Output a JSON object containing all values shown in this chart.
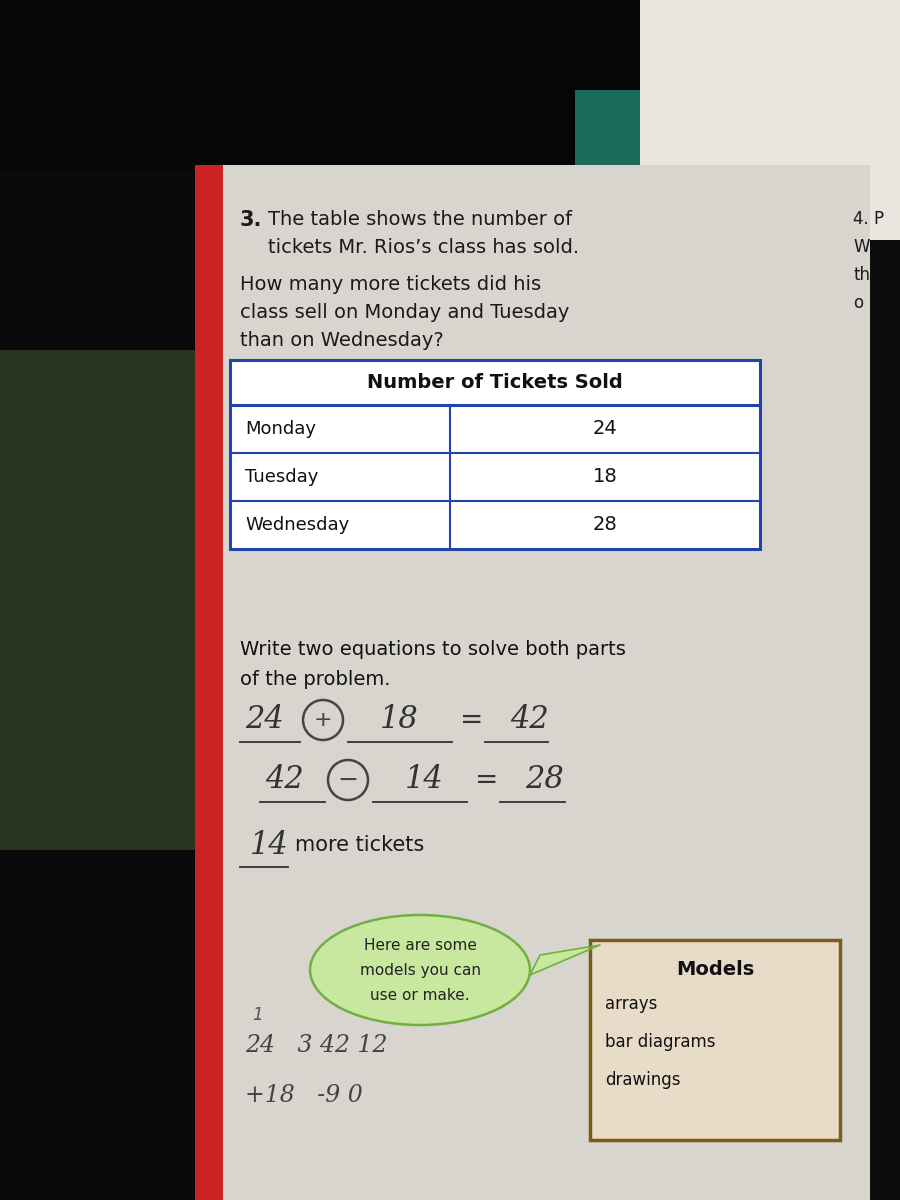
{
  "bg_color": "#0d0d0d",
  "left_bg_color": "#111111",
  "carpet_color": "#3a4a2a",
  "page_color": "#d8d5ce",
  "red_bar_color": "#cc2222",
  "question_number": "3.",
  "question_text_line1": "The table shows the number of",
  "question_text_line2": "tickets Mr. Rios’s class has sold.",
  "question_subtext_line1": "How many more tickets did his",
  "question_subtext_line2": "class sell on Monday and Tuesday",
  "question_subtext_line3": "than on Wednesday?",
  "table_title": "Number of Tickets Sold",
  "table_rows": [
    [
      "Monday",
      "24"
    ],
    [
      "Tuesday",
      "18"
    ],
    [
      "Wednesday",
      "28"
    ]
  ],
  "write_prompt_line1": "Write two equations to solve both parts",
  "write_prompt_line2": "of the problem.",
  "eq1": [
    "24",
    "+",
    "18",
    "=",
    "42"
  ],
  "eq2": [
    "42",
    "-",
    "14",
    "=",
    "28"
  ],
  "answer_blank": "14",
  "answer_suffix": "more tickets",
  "bubble_line1": "Here are some",
  "bubble_line2": "models you can",
  "bubble_line3": "use or make.",
  "models_title": "Models",
  "models_items": [
    "arrays",
    "bar diagrams",
    "drawings"
  ],
  "q4_lines": [
    "4. P",
    "W",
    "th",
    "o"
  ],
  "hw_line1": "24   3 42 12",
  "hw_line2": "+18   -9 0",
  "table_border_color": "#2244aa",
  "models_box_color": "#7a5c1a",
  "bubble_fill": "#c8e8a0",
  "bubble_edge": "#70b040",
  "teal_color": "#1a6b5a",
  "white_paper_color": "#e8e6de"
}
